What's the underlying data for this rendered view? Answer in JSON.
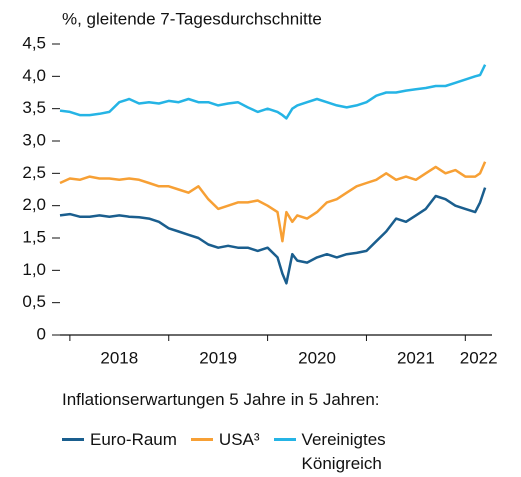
{
  "chart_data": {
    "type": "line",
    "subtitle": "%, gleitende 7-Tagesdurchschnitte",
    "note": "Inflationserwartungen 5 Jahre in 5 Jahren:",
    "x": [
      2017.9,
      2018.0,
      2018.1,
      2018.2,
      2018.3,
      2018.4,
      2018.5,
      2018.6,
      2018.7,
      2018.8,
      2018.9,
      2019.0,
      2019.1,
      2019.2,
      2019.3,
      2019.4,
      2019.5,
      2019.6,
      2019.7,
      2019.8,
      2019.9,
      2020.0,
      2020.1,
      2020.15,
      2020.19,
      2020.25,
      2020.3,
      2020.4,
      2020.5,
      2020.6,
      2020.7,
      2020.8,
      2020.9,
      2021.0,
      2021.1,
      2021.2,
      2021.3,
      2021.4,
      2021.5,
      2021.6,
      2021.7,
      2021.8,
      2021.9,
      2022.0,
      2022.1,
      2022.15,
      2022.2
    ],
    "series": [
      {
        "name": "Euro-Raum",
        "color": "#1a5e8e",
        "values": [
          1.85,
          1.87,
          1.83,
          1.83,
          1.85,
          1.83,
          1.85,
          1.83,
          1.82,
          1.8,
          1.75,
          1.65,
          1.6,
          1.55,
          1.5,
          1.4,
          1.35,
          1.38,
          1.35,
          1.35,
          1.3,
          1.35,
          1.2,
          0.95,
          0.8,
          1.25,
          1.15,
          1.12,
          1.2,
          1.25,
          1.2,
          1.25,
          1.27,
          1.3,
          1.45,
          1.6,
          1.8,
          1.75,
          1.85,
          1.95,
          2.15,
          2.1,
          2.0,
          1.95,
          1.9,
          2.05,
          2.28
        ]
      },
      {
        "name": "USA³",
        "color": "#f7a035",
        "values": [
          2.35,
          2.42,
          2.4,
          2.45,
          2.42,
          2.42,
          2.4,
          2.42,
          2.4,
          2.35,
          2.3,
          2.3,
          2.25,
          2.2,
          2.3,
          2.1,
          1.95,
          2.0,
          2.05,
          2.05,
          2.08,
          2.0,
          1.9,
          1.45,
          1.9,
          1.75,
          1.85,
          1.8,
          1.9,
          2.05,
          2.1,
          2.2,
          2.3,
          2.35,
          2.4,
          2.5,
          2.4,
          2.45,
          2.4,
          2.5,
          2.6,
          2.5,
          2.55,
          2.45,
          2.45,
          2.5,
          2.68
        ]
      },
      {
        "name": "Vereinigtes Königreich",
        "color": "#25b4e5",
        "values": [
          3.47,
          3.45,
          3.4,
          3.4,
          3.42,
          3.45,
          3.6,
          3.65,
          3.58,
          3.6,
          3.58,
          3.62,
          3.6,
          3.65,
          3.6,
          3.6,
          3.55,
          3.58,
          3.6,
          3.52,
          3.45,
          3.5,
          3.45,
          3.4,
          3.35,
          3.5,
          3.55,
          3.6,
          3.65,
          3.6,
          3.55,
          3.52,
          3.55,
          3.6,
          3.7,
          3.75,
          3.75,
          3.78,
          3.8,
          3.82,
          3.85,
          3.85,
          3.9,
          3.95,
          4.0,
          4.02,
          4.18
        ]
      }
    ],
    "xlim": [
      2017.9,
      2022.27
    ],
    "xticks": [
      2018,
      2019,
      2020,
      2021,
      2022
    ],
    "ylim": [
      0,
      4.5
    ],
    "yticks": [
      0,
      {
        "value": 0.5,
        "label": "0,5"
      },
      {
        "value": 1.0,
        "label": "1,0"
      },
      {
        "value": 1.5,
        "label": "1,5"
      },
      {
        "value": 2.0,
        "label": "2,0"
      },
      {
        "value": 2.5,
        "label": "2,5"
      },
      {
        "value": 3.0,
        "label": "3,0"
      },
      {
        "value": 3.5,
        "label": "3,5"
      },
      {
        "value": 4.0,
        "label": "4,0"
      },
      {
        "value": 4.5,
        "label": "4,5"
      }
    ],
    "grid": false
  }
}
